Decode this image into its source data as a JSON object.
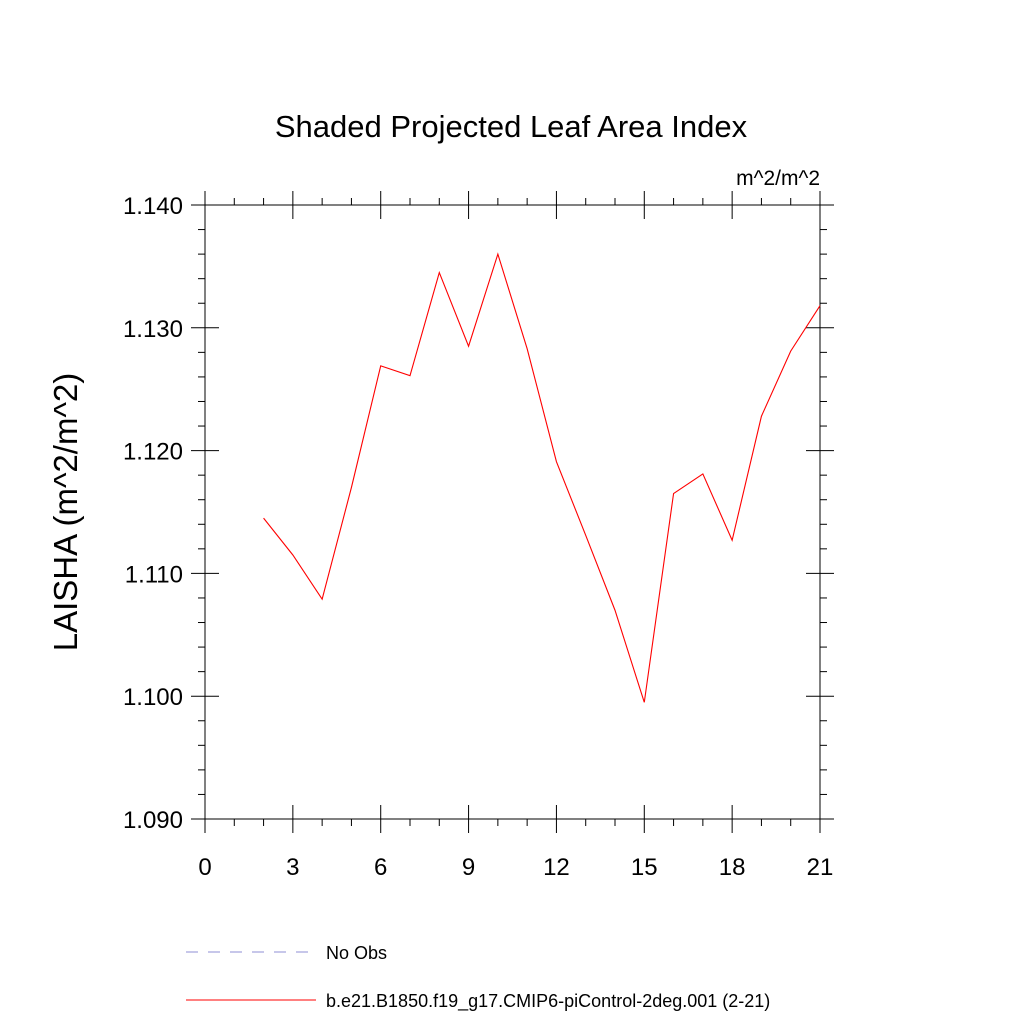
{
  "chart_data": {
    "type": "line",
    "title": "Shaded Projected Leaf Area Index",
    "units": "m^2/m^2",
    "ylabel": "LAISHA  (m^2/m^2)",
    "xlabel": "",
    "xlim": [
      0,
      21
    ],
    "ylim": [
      1.09,
      1.14
    ],
    "x_ticks": [
      0,
      3,
      6,
      9,
      12,
      15,
      18,
      21
    ],
    "y_ticks": [
      1.09,
      1.1,
      1.11,
      1.12,
      1.13,
      1.14
    ],
    "y_tick_labels": [
      "1.090",
      "1.100",
      "1.110",
      "1.120",
      "1.130",
      "1.140"
    ],
    "grid": false,
    "legend_position": "bottom",
    "series": [
      {
        "name": "No Obs",
        "style": "dashed",
        "color": "#8f8fd6",
        "x": [],
        "values": []
      },
      {
        "name": "b.e21.B1850.f19_g17.CMIP6-piControl-2deg.001 (2-21)",
        "style": "solid",
        "color": "#ff0000",
        "x": [
          2,
          3,
          4,
          5,
          6,
          7,
          8,
          9,
          10,
          11,
          12,
          13,
          14,
          15,
          16,
          17,
          18,
          19,
          20,
          21
        ],
        "values": [
          1.1145,
          1.1115,
          1.1079,
          1.117,
          1.1269,
          1.1261,
          1.1345,
          1.1285,
          1.136,
          1.1283,
          1.1191,
          1.1131,
          1.107,
          1.0995,
          1.1165,
          1.1181,
          1.1127,
          1.1228,
          1.1281,
          1.1318
        ]
      }
    ]
  }
}
